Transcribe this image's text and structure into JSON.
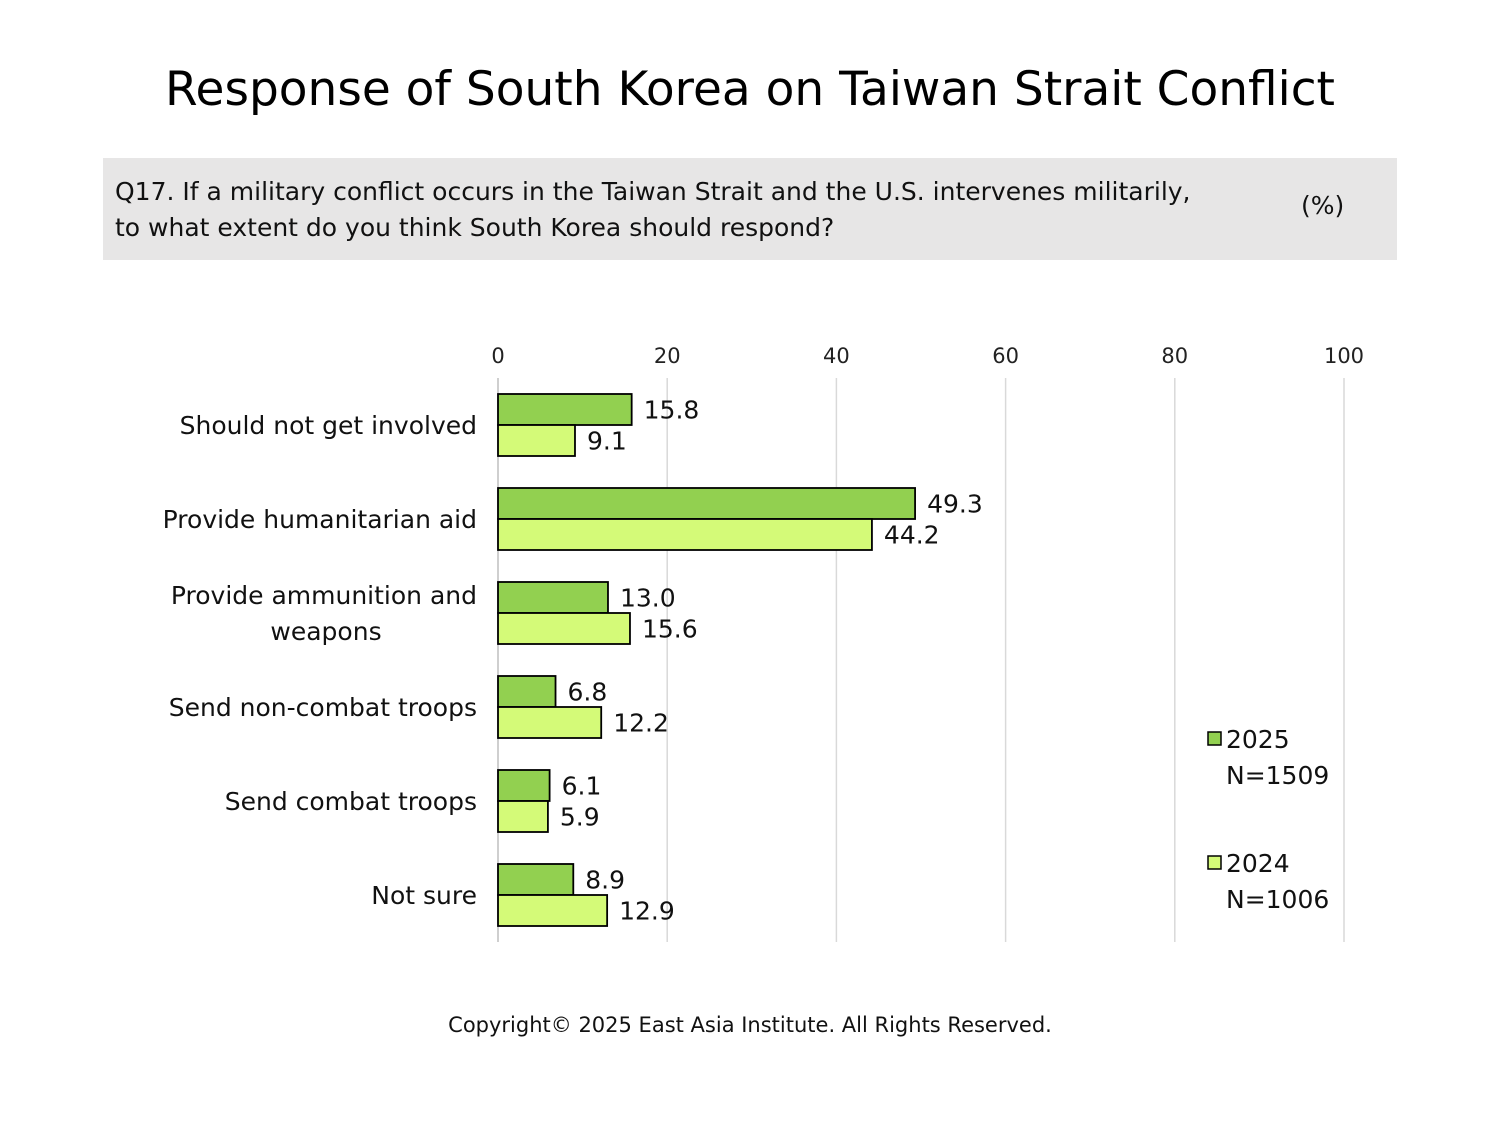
{
  "title": "Response of South Korea on Taiwan Strait Conflict",
  "question": {
    "line1": "Q17. If a military conflict occurs in the Taiwan Strait and the U.S. intervenes militarily,",
    "line2": "to what extent do you think South Korea should respond?",
    "unit": "(%)"
  },
  "copyright": "Copyright© 2025 East Asia Institute. All Rights Reserved.",
  "colors": {
    "series_2025": "#92d050",
    "series_2024": "#d4fa78",
    "gridline": "#d9d9d9",
    "bar_border": "#000000"
  },
  "chart_data": {
    "type": "bar",
    "orientation": "horizontal",
    "categories": [
      [
        "Should not get involved"
      ],
      [
        "Provide humanitarian aid"
      ],
      [
        "Provide ammunition and",
        "weapons"
      ],
      [
        "Send non-combat troops"
      ],
      [
        "Send combat troops"
      ],
      [
        "Not sure"
      ]
    ],
    "series": [
      {
        "name": "2025",
        "sample": "N=1509",
        "values": [
          15.8,
          49.3,
          13.0,
          6.8,
          6.1,
          8.9
        ]
      },
      {
        "name": "2024",
        "sample": "N=1006",
        "values": [
          9.1,
          44.2,
          15.6,
          12.2,
          5.9,
          12.9
        ]
      }
    ],
    "xlim": [
      0,
      100
    ],
    "xticks": [
      0,
      20,
      40,
      60,
      80,
      100
    ],
    "grid": true,
    "legend_position": "right"
  }
}
